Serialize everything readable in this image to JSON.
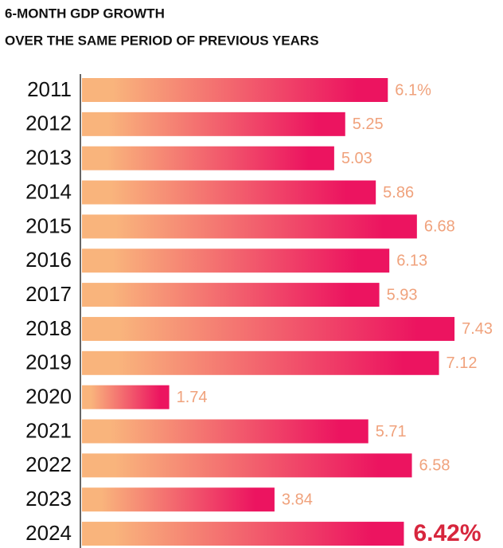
{
  "chart_data": {
    "type": "bar",
    "orientation": "horizontal",
    "title": "6-MONTH GDP GROWTH",
    "subtitle": "OVER THE SAME PERIOD OF PREVIOUS YEARS",
    "categories": [
      "2011",
      "2012",
      "2013",
      "2014",
      "2015",
      "2016",
      "2017",
      "2018",
      "2019",
      "2020",
      "2021",
      "2022",
      "2023",
      "2024"
    ],
    "values": [
      6.1,
      5.25,
      5.03,
      5.86,
      6.68,
      6.13,
      5.93,
      7.43,
      7.12,
      1.74,
      5.71,
      6.58,
      3.84,
      6.42
    ],
    "value_labels": [
      "6.1%",
      "5.25",
      "5.03",
      "5.86",
      "6.68",
      "6.13",
      "5.93",
      "7.43",
      "7.12",
      "1.74",
      "5.71",
      "6.58",
      "3.84",
      "6.42%"
    ],
    "gradient": [
      "#f9b47c",
      "#ec1460"
    ],
    "label_color": "#f0a27c",
    "highlight_color": "#d7263d"
  }
}
